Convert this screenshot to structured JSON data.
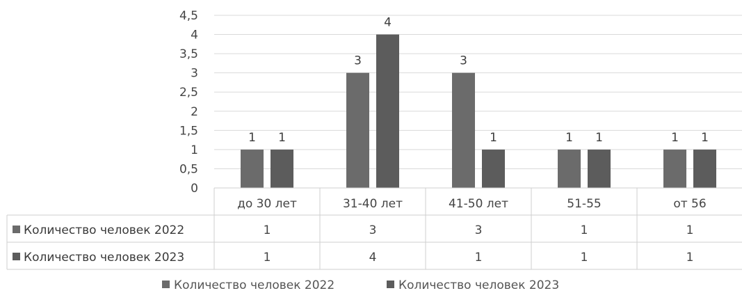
{
  "chart_data": {
    "type": "bar",
    "categories": [
      "до 30 лет",
      "31-40 лет",
      "41-50 лет",
      "51-55",
      "от 56"
    ],
    "series": [
      {
        "name": "Количество человек 2022",
        "values": [
          1,
          3,
          3,
          1,
          1
        ]
      },
      {
        "name": "Количество человек 2023",
        "values": [
          1,
          4,
          1,
          1,
          1
        ]
      }
    ],
    "y_ticks": [
      "0",
      "0,5",
      "1",
      "1,5",
      "2",
      "2,5",
      "3",
      "3,5",
      "4",
      "4,5"
    ],
    "ylim": [
      0,
      4.5
    ],
    "grid": true,
    "legend": "bottom",
    "data_table": true
  },
  "colors": {
    "series_2022": "#6b6b6b",
    "series_2023": "#5c5c5c",
    "grid": "#d9d9d9",
    "table_border": "#cfcfcf"
  }
}
